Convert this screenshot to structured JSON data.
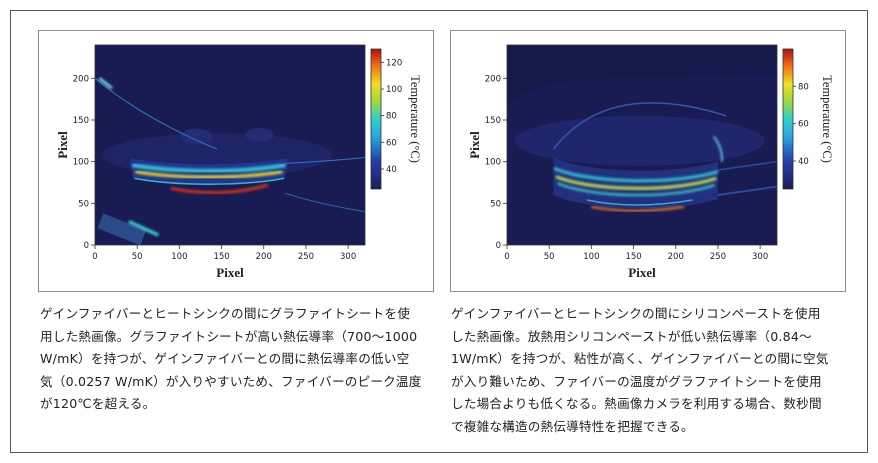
{
  "chart_data": [
    {
      "type": "heatmap",
      "title": "",
      "xlabel": "Pixel",
      "ylabel": "Pixel",
      "xlim": [
        0,
        320
      ],
      "ylim": [
        0,
        240
      ],
      "xticks": [
        0,
        50,
        100,
        150,
        200,
        250,
        300
      ],
      "yticks": [
        0,
        50,
        100,
        150,
        200
      ],
      "colorbar": {
        "label": "Temperature (°C)",
        "range": [
          25,
          130
        ],
        "ticks": [
          40,
          60,
          80,
          100,
          120
        ]
      },
      "peak_temperature": 120,
      "colors": {
        "low": "#20205a",
        "mid": "#2ad0d8",
        "high": "#d02020",
        "background": "#181c52"
      }
    },
    {
      "type": "heatmap",
      "title": "",
      "xlabel": "Pixel",
      "ylabel": "Pixel",
      "xlim": [
        0,
        320
      ],
      "ylim": [
        0,
        240
      ],
      "xticks": [
        0,
        50,
        100,
        150,
        200,
        250,
        300
      ],
      "yticks": [
        0,
        50,
        100,
        150,
        200
      ],
      "colorbar": {
        "label": "Temperature (°C)",
        "range": [
          25,
          100
        ],
        "ticks": [
          40,
          60,
          80
        ]
      },
      "colors": {
        "low": "#20205a",
        "mid": "#2ad0d8",
        "high": "#d02020",
        "background": "#181c52"
      }
    }
  ],
  "captions": [
    {
      "lines": [
        "ゲインファイバーとヒートシンクの間にグラファイトシートを使",
        "用した熱画像。グラファイトシートが高い熱伝導率（700～1000",
        "W/mK）を持つが、ゲインファイバーとの間に熱伝導率の低い空",
        "気（0.0257 W/mK）が入りやすいため、ファイバーのピーク温度",
        "が120℃を超える。"
      ]
    },
    {
      "lines": [
        "ゲインファイバーとヒートシンクの間にシリコンペーストを使用",
        "した熱画像。放熱用シリコンペーストが低い熱伝導率（0.84～",
        "1W/mK）を持つが、粘性が高く、ゲインファイバーとの間に空気",
        "が入り難いため、ファイバーの温度がグラファイトシートを使用",
        "した場合よりも低くなる。熱画像カメラを利用する場合、数秒間",
        "で複雑な構造の熱伝導特性を把握できる。"
      ]
    }
  ]
}
